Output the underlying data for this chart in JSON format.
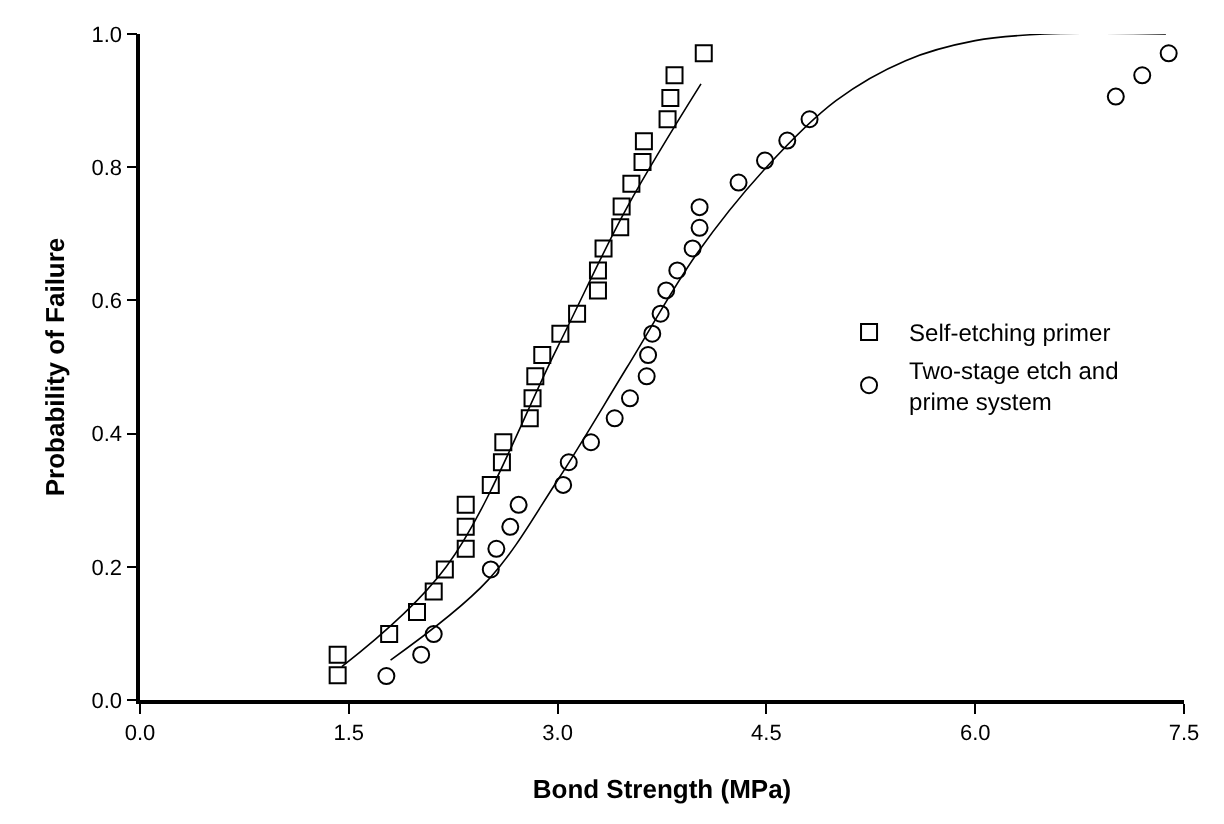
{
  "chart_data": {
    "type": "scatter",
    "xlabel": "Bond Strength (MPa)",
    "ylabel": "Probability of Failure",
    "xlim": [
      0,
      7.5
    ],
    "xticks": [
      {
        "value": 0,
        "label": "0.0"
      },
      1.5,
      {
        "value": 3,
        "label": "3.0"
      },
      4.5,
      {
        "value": 6,
        "label": "6.0"
      },
      7.5
    ],
    "ylim": [
      0,
      1
    ],
    "yticks": [
      {
        "value": 0,
        "label": "0.0"
      },
      0.2,
      0.4,
      0.6,
      0.8,
      {
        "value": 1,
        "label": "1.0"
      }
    ],
    "legend": "right",
    "series": [
      {
        "name": "Self-etching primer",
        "marker": "square",
        "color": "#000000",
        "x": [
          1.42,
          1.42,
          1.79,
          1.99,
          2.11,
          2.19,
          2.34,
          2.34,
          2.34,
          2.52,
          2.6,
          2.61,
          2.8,
          2.82,
          2.84,
          2.89,
          3.02,
          3.14,
          3.29,
          3.29,
          3.33,
          3.45,
          3.46,
          3.53,
          3.61,
          3.62,
          3.79,
          3.81,
          3.84,
          4.05
        ],
        "values": [
          0.068,
          0.037,
          0.099,
          0.132,
          0.163,
          0.196,
          0.227,
          0.26,
          0.293,
          0.323,
          0.357,
          0.387,
          0.423,
          0.453,
          0.486,
          0.518,
          0.55,
          0.58,
          0.615,
          0.645,
          0.678,
          0.71,
          0.741,
          0.775,
          0.808,
          0.839,
          0.872,
          0.904,
          0.938,
          0.971
        ]
      },
      {
        "name": "Two-stage etch and prime system",
        "marker": "circle",
        "color": "#000000",
        "x": [
          1.77,
          2.02,
          2.11,
          2.52,
          2.56,
          2.66,
          2.72,
          3.04,
          3.08,
          3.24,
          3.41,
          3.52,
          3.64,
          3.65,
          3.68,
          3.74,
          3.78,
          3.86,
          3.97,
          4.02,
          4.02,
          4.3,
          4.49,
          4.65,
          4.81,
          7.01,
          7.2,
          7.39
        ],
        "values": [
          0.036,
          0.068,
          0.099,
          0.196,
          0.227,
          0.26,
          0.293,
          0.323,
          0.357,
          0.387,
          0.423,
          0.453,
          0.486,
          0.518,
          0.55,
          0.58,
          0.615,
          0.645,
          0.678,
          0.709,
          0.74,
          0.777,
          0.81,
          0.84,
          0.872,
          0.906,
          0.938,
          0.971
        ]
      },
      {
        "type": "line",
        "marker": "none",
        "color": "#000000",
        "x": [
          1.45,
          2.2,
          3.0,
          3.5,
          4.03
        ],
        "values": [
          0.05,
          0.2,
          0.53,
          0.74,
          0.925
        ]
      },
      {
        "type": "line",
        "marker": "none",
        "color": "#000000",
        "x": [
          1.8,
          2.5,
          3.0,
          3.5,
          4.0,
          4.5,
          5.0,
          5.5,
          6.0,
          6.5,
          7.37
        ],
        "values": [
          0.06,
          0.18,
          0.33,
          0.5,
          0.67,
          0.8,
          0.9,
          0.96,
          0.99,
          1.0,
          1.0
        ]
      }
    ]
  }
}
